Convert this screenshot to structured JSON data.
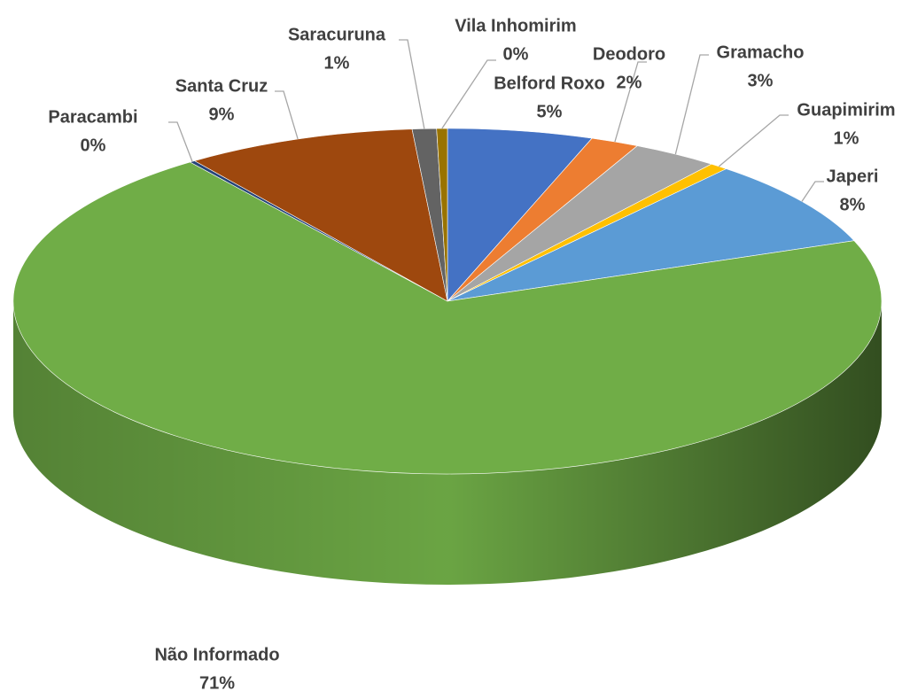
{
  "chart_data": {
    "type": "pie",
    "categories": [
      "Belford Roxo",
      "Deodoro",
      "Gramacho",
      "Guapimirim",
      "Japeri",
      "Não Informado",
      "Paracambi",
      "Santa Cruz",
      "Saracuruna",
      "Vila Inhomirim"
    ],
    "values": [
      5.4,
      1.8,
      3.2,
      0.7,
      8.2,
      70.6,
      0.2,
      8.6,
      0.9,
      0.4
    ],
    "value_labels": [
      "5%",
      "2%",
      "3%",
      "1%",
      "8%",
      "71%",
      "0%",
      "9%",
      "1%",
      "0%"
    ],
    "colors": [
      "#4472c4",
      "#ed7d31",
      "#a5a5a5",
      "#ffc000",
      "#5b9bd5",
      "#70ad47",
      "#264478",
      "#9e480e",
      "#636363",
      "#997300"
    ]
  }
}
